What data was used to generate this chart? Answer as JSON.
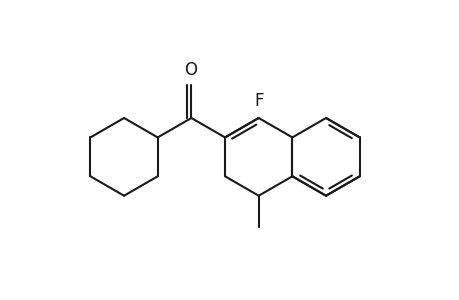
{
  "background": "#ffffff",
  "line_color": "#1a1a1a",
  "line_width": 1.5,
  "fig_width": 4.6,
  "fig_height": 3.0,
  "dpi": 100
}
